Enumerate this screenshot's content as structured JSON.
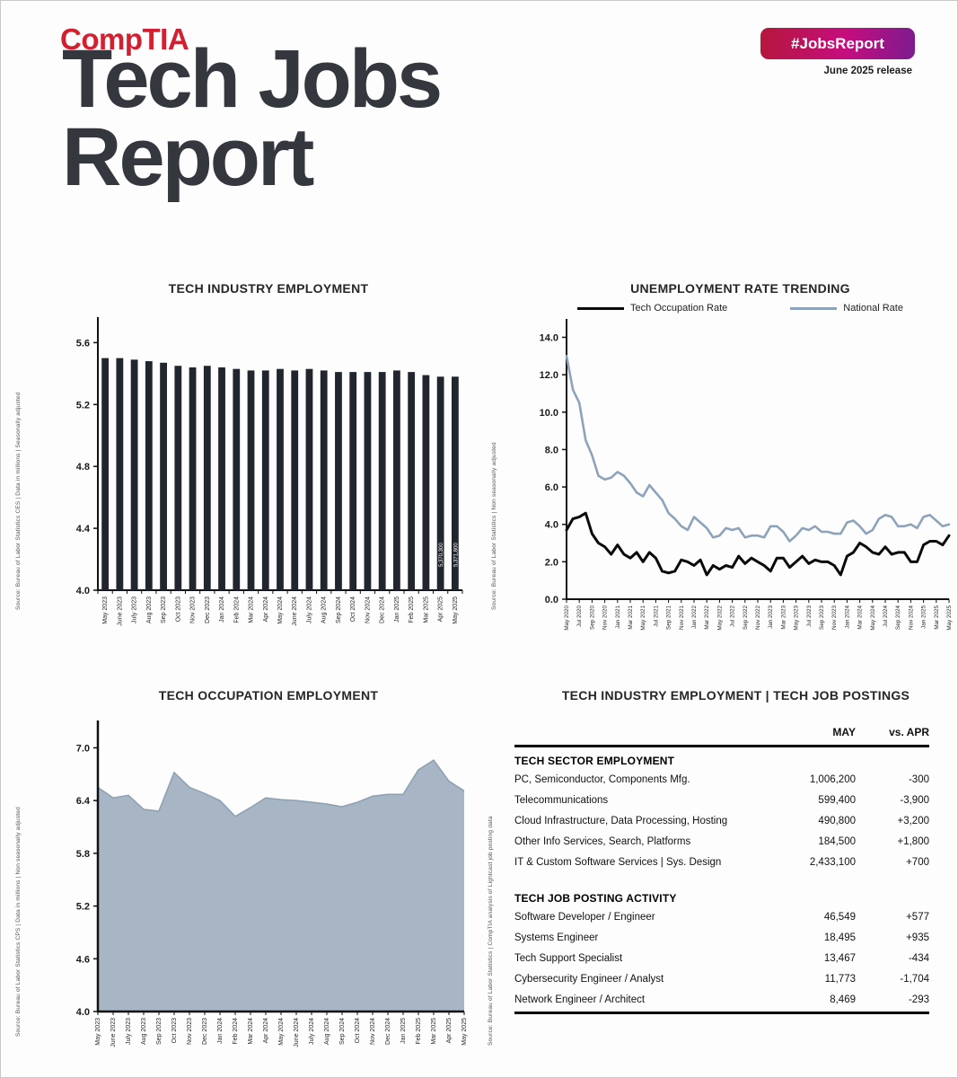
{
  "header": {
    "logo_text": "CompTIA",
    "title_line1": "Tech Jobs",
    "title_line2": "Report",
    "badge": "#JobsReport",
    "release": "June 2025 release"
  },
  "colors": {
    "logo_red": "#d22030",
    "title_dark": "#34373e",
    "badge_gradient_left": "#b5173c",
    "badge_gradient_right": "#7c1b8f",
    "bar_fill": "#20252e",
    "tech_line": "#0a0a0a",
    "national_line": "#8da3ba",
    "area_fill": "#a7b5c4",
    "area_stroke": "#8ea2b4"
  },
  "chart_data": [
    {
      "type": "bar",
      "title": "TECH INDUSTRY EMPLOYMENT",
      "source": "Source: Bureau of Labor Statistics CES | Data in millions | Seasonally adjusted",
      "categories": [
        "May 2023",
        "June 2023",
        "July 2023",
        "Aug 2023",
        "Sep 2023",
        "Oct 2023",
        "Nov 2023",
        "Dec 2023",
        "Jan 2024",
        "Feb 2024",
        "Mar 2024",
        "Apr 2024",
        "May 2024",
        "June 2024",
        "July 2024",
        "Aug 2024",
        "Sep 2024",
        "Oct 2024",
        "Nov 2024",
        "Dec 2024",
        "Jan 2025",
        "Feb 2025",
        "Mar 2025",
        "Apr 2025",
        "May 2025"
      ],
      "values": [
        5.5,
        5.5,
        5.49,
        5.48,
        5.47,
        5.45,
        5.44,
        5.45,
        5.44,
        5.43,
        5.42,
        5.42,
        5.43,
        5.42,
        5.43,
        5.42,
        5.41,
        5.41,
        5.41,
        5.41,
        5.42,
        5.41,
        5.39,
        5.38,
        5.38
      ],
      "ylim": [
        4.0,
        5.6
      ],
      "yticks": [
        5.6,
        5.2,
        4.8,
        4.4,
        4.0
      ],
      "ylabel": "",
      "xlabel": "",
      "grid": false,
      "value_labels": [
        {
          "index": 23,
          "text": "5,370,300"
        },
        {
          "index": 24,
          "text": "5,371,800"
        }
      ]
    },
    {
      "type": "line",
      "title": "UNEMPLOYMENT RATE TRENDING",
      "source": "Source: Bureau of Labor Statistics | Non seasonally adjusted",
      "x": [
        "May 2020",
        "Jun 2020",
        "Jul 2020",
        "Aug 2020",
        "Sep 2020",
        "Oct 2020",
        "Nov 2020",
        "Dec 2020",
        "Jan 2021",
        "Feb 2021",
        "Mar 2021",
        "Apr 2021",
        "May 2021",
        "Jun 2021",
        "Jul 2021",
        "Aug 2021",
        "Sep 2021",
        "Oct 2021",
        "Nov 2021",
        "Dec 2021",
        "Jan 2022",
        "Feb 2022",
        "Mar 2022",
        "Apr 2022",
        "May 2022",
        "Jun 2022",
        "Jul 2022",
        "Aug 2022",
        "Sep 2022",
        "Oct 2022",
        "Nov 2022",
        "Dec 2022",
        "Jan 2023",
        "Feb 2023",
        "Mar 2023",
        "Apr 2023",
        "May 2023",
        "Jun 2023",
        "Jul 2023",
        "Aug 2023",
        "Sep 2023",
        "Oct 2023",
        "Nov 2023",
        "Dec 2023",
        "Jan 2024",
        "Feb 2024",
        "Mar 2024",
        "Apr 2024",
        "May 2024",
        "Jun 2024",
        "Jul 2024",
        "Aug 2024",
        "Sep 2024",
        "Oct 2024",
        "Nov 2024",
        "Dec 2024",
        "Jan 2025",
        "Feb 2025",
        "Mar 2025",
        "Apr 2025",
        "May 2025"
      ],
      "tick_every": 2,
      "series": [
        {
          "name": "Tech Occupation Rate",
          "color": "#0a0a0a",
          "values": [
            3.7,
            4.3,
            4.4,
            4.6,
            3.5,
            3.0,
            2.8,
            2.4,
            2.9,
            2.4,
            2.2,
            2.5,
            2.0,
            2.5,
            2.2,
            1.5,
            1.4,
            1.5,
            2.1,
            2.0,
            1.8,
            2.1,
            1.3,
            1.8,
            1.6,
            1.8,
            1.7,
            2.3,
            1.9,
            2.2,
            2.0,
            1.8,
            1.5,
            2.2,
            2.2,
            1.7,
            2.0,
            2.3,
            1.9,
            2.1,
            2.0,
            2.0,
            1.8,
            1.3,
            2.3,
            2.5,
            3.0,
            2.8,
            2.5,
            2.4,
            2.8,
            2.4,
            2.5,
            2.5,
            2.0,
            2.0,
            2.9,
            3.1,
            3.1,
            2.9,
            3.4
          ]
        },
        {
          "name": "National Rate",
          "color": "#8da3ba",
          "values": [
            13.0,
            11.2,
            10.5,
            8.5,
            7.7,
            6.6,
            6.4,
            6.5,
            6.8,
            6.6,
            6.2,
            5.7,
            5.5,
            6.1,
            5.7,
            5.3,
            4.6,
            4.3,
            3.9,
            3.7,
            4.4,
            4.1,
            3.8,
            3.3,
            3.4,
            3.8,
            3.7,
            3.8,
            3.3,
            3.4,
            3.4,
            3.3,
            3.9,
            3.9,
            3.6,
            3.1,
            3.4,
            3.8,
            3.7,
            3.9,
            3.6,
            3.6,
            3.5,
            3.5,
            4.1,
            4.2,
            3.9,
            3.5,
            3.7,
            4.3,
            4.5,
            4.4,
            3.9,
            3.9,
            4.0,
            3.8,
            4.4,
            4.5,
            4.2,
            3.9,
            4.0
          ]
        }
      ],
      "ylim": [
        0.0,
        14.0
      ],
      "yticks": [
        14.0,
        12.0,
        10.0,
        8.0,
        6.0,
        4.0,
        2.0,
        0.0
      ],
      "legend_position": "top",
      "grid": false
    },
    {
      "type": "area",
      "title": "TECH OCCUPATION EMPLOYMENT",
      "source": "Source: Bureau of Labor Statistics CPS | Data in millions | Non seasonally adjusted",
      "categories": [
        "May 2023",
        "June 2023",
        "July 2023",
        "Aug 2023",
        "Sep 2023",
        "Oct 2023",
        "Nov 2023",
        "Dec 2023",
        "Jan 2024",
        "Feb 2024",
        "Mar 2024",
        "Apr 2024",
        "May 2024",
        "June 2024",
        "July 2024",
        "Aug 2024",
        "Sep 2024",
        "Oct 2024",
        "Nov 2024",
        "Dec 2024",
        "Jan 2025",
        "Feb 2025",
        "Mar 2025",
        "Apr 2025",
        "May 2025"
      ],
      "values": [
        6.55,
        6.43,
        6.46,
        6.3,
        6.28,
        6.72,
        6.55,
        6.48,
        6.4,
        6.22,
        6.32,
        6.43,
        6.41,
        6.4,
        6.38,
        6.36,
        6.33,
        6.38,
        6.45,
        6.47,
        6.47,
        6.75,
        6.86,
        6.62,
        6.51
      ],
      "ylim": [
        4.0,
        7.0
      ],
      "yticks": [
        7.0,
        6.4,
        5.8,
        5.2,
        4.6,
        4.0
      ],
      "grid": false
    },
    {
      "type": "table",
      "title": "TECH INDUSTRY EMPLOYMENT | TECH JOB POSTINGS",
      "source": "Source: Bureau of Labor Statistics | CompTIA analysis of Lightcast job posting data",
      "columns": [
        "MAY",
        "vs. APR"
      ],
      "sections": [
        {
          "header": "TECH SECTOR EMPLOYMENT",
          "rows": [
            {
              "label": "PC, Semiconductor, Components Mfg.",
              "value": "1,006,200",
              "change": "-300"
            },
            {
              "label": "Telecommunications",
              "value": "599,400",
              "change": "-3,900"
            },
            {
              "label": "Cloud Infrastructure, Data Processing, Hosting",
              "value": "490,800",
              "change": "+3,200"
            },
            {
              "label": "Other Info Services, Search, Platforms",
              "value": "184,500",
              "change": "+1,800"
            },
            {
              "label": "IT & Custom Software Services | Sys. Design",
              "value": "2,433,100",
              "change": "+700"
            }
          ]
        },
        {
          "header": "TECH JOB POSTING ACTIVITY",
          "rows": [
            {
              "label": "Software Developer / Engineer",
              "value": "46,549",
              "change": "+577"
            },
            {
              "label": "Systems Engineer",
              "value": "18,495",
              "change": "+935"
            },
            {
              "label": "Tech Support Specialist",
              "value": "13,467",
              "change": "-434"
            },
            {
              "label": "Cybersecurity Engineer / Analyst",
              "value": "11,773",
              "change": "-1,704"
            },
            {
              "label": "Network Engineer / Architect",
              "value": "8,469",
              "change": "-293"
            }
          ]
        }
      ]
    }
  ]
}
